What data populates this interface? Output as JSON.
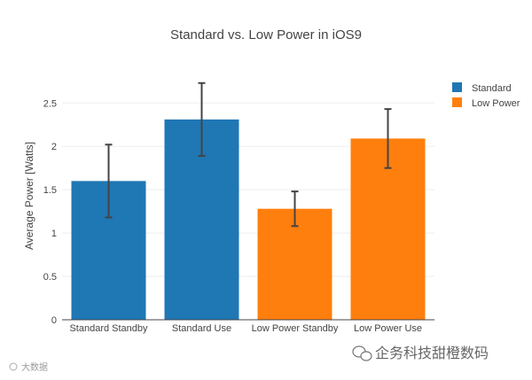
{
  "chart_data": {
    "type": "bar",
    "title": "Standard vs. Low Power in iOS9",
    "xlabel": "",
    "ylabel": "Average Power [Watts]",
    "ylim": [
      0,
      2.85
    ],
    "yticks": [
      0,
      0.5,
      1,
      1.5,
      2,
      2.5
    ],
    "ytick_labels": [
      "0",
      "0.5",
      "1",
      "1.5",
      "2",
      "2.5"
    ],
    "grid": true,
    "legend_position": "top-right",
    "categories": [
      "Standard Standby",
      "Standard Use",
      "Low Power Standby",
      "Low Power Use"
    ],
    "series": [
      {
        "name": "Standard",
        "color": "#1f77b4",
        "x": [
          "Standard Standby",
          "Standard Use"
        ],
        "values": [
          1.6,
          2.31
        ],
        "error_plus": [
          0.42,
          0.42
        ],
        "error_minus": [
          0.42,
          0.42
        ]
      },
      {
        "name": "Low Power",
        "color": "#ff7f0e",
        "x": [
          "Low Power Standby",
          "Low Power Use"
        ],
        "values": [
          1.28,
          2.09
        ],
        "error_plus": [
          0.2,
          0.34
        ],
        "error_minus": [
          0.2,
          0.34
        ]
      }
    ]
  },
  "watermark": {
    "left_text": "大数据",
    "right_text": "企务科技甜橙数码",
    "color": "#aaaaaa"
  }
}
